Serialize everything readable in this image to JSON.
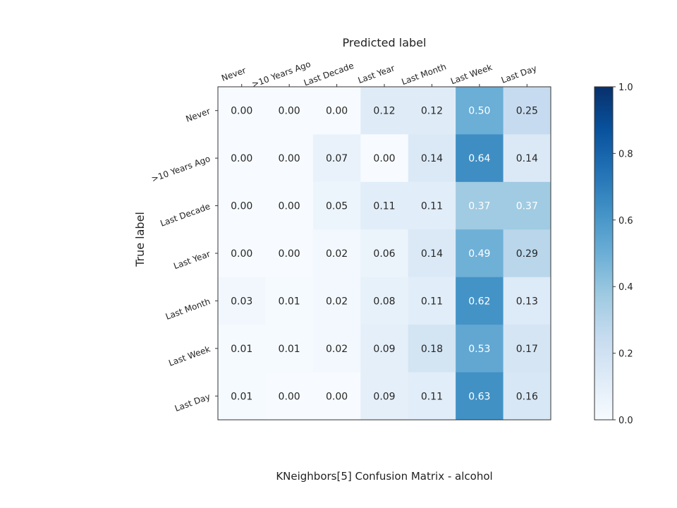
{
  "chart_data": {
    "type": "heatmap",
    "xlabel": "Predicted label",
    "ylabel": "True label",
    "caption": "KNeighbors[5]  Confusion Matrix - alcohol",
    "x_categories": [
      "Never",
      ">10 Years Ago",
      "Last Decade",
      "Last Year",
      "Last Month",
      "Last Week",
      "Last Day"
    ],
    "y_categories": [
      "Never",
      ">10 Years Ago",
      "Last Decade",
      "Last Year",
      "Last Month",
      "Last Week",
      "Last Day"
    ],
    "values": [
      [
        0.0,
        0.0,
        0.0,
        0.12,
        0.12,
        0.5,
        0.25
      ],
      [
        0.0,
        0.0,
        0.07,
        0.0,
        0.14,
        0.64,
        0.14
      ],
      [
        0.0,
        0.0,
        0.05,
        0.11,
        0.11,
        0.37,
        0.37
      ],
      [
        0.0,
        0.0,
        0.02,
        0.06,
        0.14,
        0.49,
        0.29
      ],
      [
        0.03,
        0.01,
        0.02,
        0.08,
        0.11,
        0.62,
        0.13
      ],
      [
        0.01,
        0.01,
        0.02,
        0.09,
        0.18,
        0.53,
        0.17
      ],
      [
        0.01,
        0.0,
        0.0,
        0.09,
        0.11,
        0.63,
        0.16
      ]
    ],
    "value_labels": [
      [
        "0.00",
        "0.00",
        "0.00",
        "0.12",
        "0.12",
        "0.50",
        "0.25"
      ],
      [
        "0.00",
        "0.00",
        "0.07",
        "0.00",
        "0.14",
        "0.64",
        "0.14"
      ],
      [
        "0.00",
        "0.00",
        "0.05",
        "0.11",
        "0.11",
        "0.37",
        "0.37"
      ],
      [
        "0.00",
        "0.00",
        "0.02",
        "0.06",
        "0.14",
        "0.49",
        "0.29"
      ],
      [
        "0.03",
        "0.01",
        "0.02",
        "0.08",
        "0.11",
        "0.62",
        "0.13"
      ],
      [
        "0.01",
        "0.01",
        "0.02",
        "0.09",
        "0.18",
        "0.53",
        "0.17"
      ],
      [
        "0.01",
        "0.00",
        "0.00",
        "0.09",
        "0.11",
        "0.63",
        "0.16"
      ]
    ],
    "colorbar": {
      "range": [
        0.0,
        1.0
      ],
      "ticks": [
        0.0,
        0.2,
        0.4,
        0.6,
        0.8,
        1.0
      ],
      "tick_labels": [
        "0.0",
        "0.2",
        "0.4",
        "0.6",
        "0.8",
        "1.0"
      ],
      "colormap": "Blues"
    },
    "colormap_stops": [
      "#f7fbff",
      "#deebf7",
      "#c6dbef",
      "#9ecae1",
      "#6baed6",
      "#4292c6",
      "#2171b5",
      "#08519c",
      "#08306b"
    ],
    "text_color_dark": "#262626",
    "text_color_light": "#ffffff"
  }
}
